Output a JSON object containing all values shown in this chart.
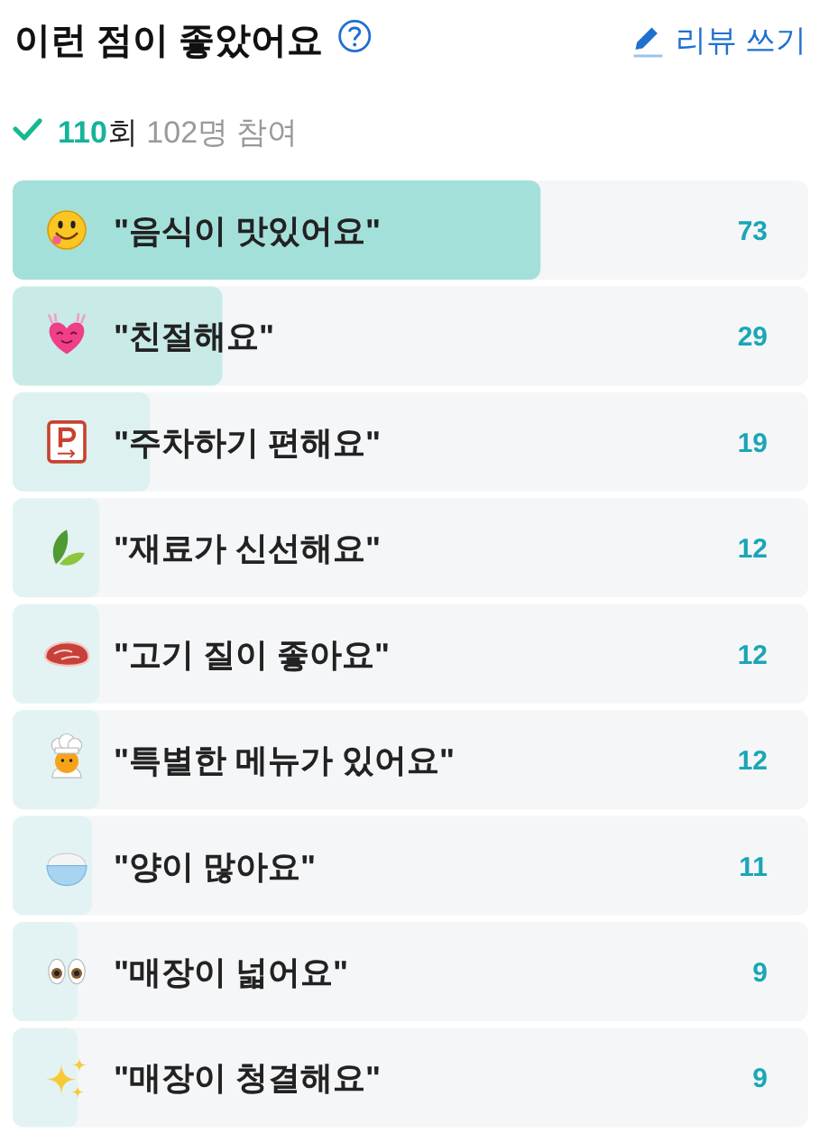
{
  "chart_data": {
    "type": "bar",
    "orientation": "horizontal",
    "title": "이런 점이 좋았어요",
    "subtitle": "110회 102명 참여",
    "annotations": [
      "리뷰 쓰기"
    ],
    "categories": [
      "\"음식이 맛있어요\"",
      "\"친절해요\"",
      "\"주차하기 편해요\"",
      "\"재료가 신선해요\"",
      "\"고기 질이 좋아요\"",
      "\"특별한 메뉴가 있어요\"",
      "\"양이 많아요\"",
      "\"매장이 넓어요\"",
      "\"매장이 청결해요\""
    ],
    "values": [
      73,
      29,
      19,
      12,
      12,
      12,
      11,
      9,
      9
    ],
    "colors": [
      "#a4e0da",
      "#c8ebe7",
      "#dcf1f0",
      "#e3f3f4",
      "#e3f3f4",
      "#e3f3f4",
      "#e3f3f4",
      "#e3f3f4",
      "#e3f3f4"
    ],
    "xlim": [
      0,
      110
    ],
    "data_labels": true
  }
}
